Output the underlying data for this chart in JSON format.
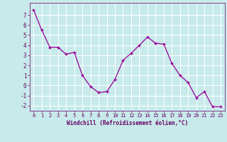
{
  "x": [
    0,
    1,
    2,
    3,
    4,
    5,
    6,
    7,
    8,
    9,
    10,
    11,
    12,
    13,
    14,
    15,
    16,
    17,
    18,
    19,
    20,
    21,
    22,
    23
  ],
  "y": [
    7.5,
    5.5,
    3.8,
    3.8,
    3.1,
    3.3,
    1.0,
    -0.1,
    -0.7,
    -0.6,
    0.6,
    2.5,
    3.2,
    4.0,
    4.8,
    4.2,
    4.1,
    2.2,
    1.0,
    0.3,
    -1.2,
    -0.6,
    -2.1,
    -2.1
  ],
  "line_color": "#990099",
  "marker": "+",
  "marker_size": 3,
  "bg_color": "#c8eaea",
  "grid_color": "#ffffff",
  "xlabel": "Windchill (Refroidissement éolien,°C)",
  "xlabel_color": "#660066",
  "tick_color": "#660066",
  "ylim": [
    -2.5,
    8.2
  ],
  "xlim": [
    -0.5,
    23.5
  ],
  "yticks": [
    -2,
    -1,
    0,
    1,
    2,
    3,
    4,
    5,
    6,
    7
  ],
  "xticks": [
    0,
    1,
    2,
    3,
    4,
    5,
    6,
    7,
    8,
    9,
    10,
    11,
    12,
    13,
    14,
    15,
    16,
    17,
    18,
    19,
    20,
    21,
    22,
    23
  ],
  "xtick_labels": [
    "0",
    "1",
    "2",
    "3",
    "4",
    "5",
    "6",
    "7",
    "8",
    "9",
    "10",
    "11",
    "12",
    "13",
    "14",
    "15",
    "16",
    "17",
    "18",
    "19",
    "20",
    "21",
    "22",
    "23"
  ]
}
